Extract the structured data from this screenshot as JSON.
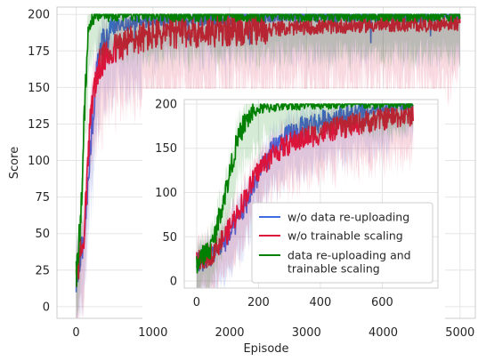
{
  "colors": {
    "background": "#ffffff",
    "grid": "#e5e5e5",
    "frame": "#cccccc",
    "series_blue": "#4169e1",
    "series_red": "#dc143c",
    "series_green": "#008000"
  },
  "chart_data": [
    {
      "id": "main",
      "type": "line",
      "xlabel": "Episode",
      "ylabel": "Score",
      "xlim": [
        -250,
        5200
      ],
      "ylim": [
        -8,
        205
      ],
      "xticks": [
        0,
        1000,
        2000,
        3000,
        4000,
        5000
      ],
      "yticks": [
        0,
        25,
        50,
        75,
        100,
        125,
        150,
        175,
        200
      ],
      "xtick_labels": [
        "0",
        "1000",
        "2000",
        "3000",
        "4000",
        "5000"
      ],
      "ytick_labels": [
        "0",
        "25",
        "50",
        "75",
        "100",
        "125",
        "150",
        "175",
        "200"
      ],
      "grid": true,
      "shaded_bands": true,
      "series": [
        {
          "name": "w/o data re-uploading",
          "color": "#4169e1",
          "x": [
            0,
            100,
            200,
            300,
            400,
            500,
            700,
            1000,
            1500,
            2000,
            2500,
            3000,
            3500,
            4000,
            4500,
            5000
          ],
          "y": [
            20,
            45,
            120,
            175,
            185,
            192,
            194,
            196,
            197,
            198,
            199,
            199,
            199,
            199,
            199,
            199
          ]
        },
        {
          "name": "w/o trainable scaling",
          "color": "#dc143c",
          "x": [
            0,
            100,
            200,
            300,
            400,
            500,
            700,
            1000,
            1500,
            2000,
            2500,
            3000,
            3500,
            4000,
            4500,
            5000
          ],
          "y": [
            20,
            50,
            140,
            165,
            172,
            176,
            182,
            186,
            188,
            189,
            190,
            191,
            192,
            193,
            193,
            194
          ]
        },
        {
          "name": "data re-uploading and trainable scaling",
          "color": "#008000",
          "x": [
            0,
            60,
            100,
            150,
            200,
            300,
            500,
            1000,
            2000,
            3000,
            4000,
            5000
          ],
          "y": [
            20,
            60,
            120,
            185,
            197,
            200,
            200,
            200,
            200,
            200,
            200,
            200
          ]
        }
      ]
    },
    {
      "id": "inset",
      "type": "line",
      "xlim": [
        -40,
        780
      ],
      "ylim": [
        -8,
        205
      ],
      "xticks": [
        0,
        200,
        400,
        600
      ],
      "yticks": [
        0,
        50,
        100,
        150,
        200
      ],
      "xtick_labels": [
        "0",
        "200",
        "400",
        "600"
      ],
      "ytick_labels": [
        "0",
        "50",
        "100",
        "150",
        "200"
      ],
      "grid": true,
      "shaded_bands": true,
      "legend": {
        "location": "lower-right",
        "entries": [
          {
            "label": "w/o data re-uploading",
            "color": "#4169e1"
          },
          {
            "label": "w/o trainable scaling",
            "color": "#dc143c"
          },
          {
            "label_lines": [
              "data re-uploading and",
              "trainable scaling"
            ],
            "color": "#008000"
          }
        ]
      },
      "series": [
        {
          "name": "w/o data re-uploading",
          "color": "#4169e1",
          "x": [
            0,
            50,
            100,
            150,
            200,
            250,
            300,
            350,
            400,
            450,
            500,
            550,
            600,
            650,
            700
          ],
          "y": [
            20,
            30,
            48,
            80,
            120,
            150,
            165,
            175,
            180,
            185,
            188,
            190,
            193,
            197,
            200
          ]
        },
        {
          "name": "w/o trainable scaling",
          "color": "#dc143c",
          "x": [
            0,
            50,
            100,
            150,
            200,
            250,
            300,
            350,
            400,
            450,
            500,
            550,
            600,
            650,
            700
          ],
          "y": [
            20,
            32,
            55,
            90,
            125,
            145,
            155,
            162,
            167,
            172,
            176,
            180,
            183,
            186,
            188
          ]
        },
        {
          "name": "data re-uploading and trainable scaling",
          "color": "#008000",
          "x": [
            0,
            50,
            100,
            125,
            150,
            175,
            200,
            250,
            300,
            400,
            500,
            600,
            700
          ],
          "y": [
            20,
            40,
            110,
            150,
            175,
            188,
            194,
            197,
            199,
            200,
            200,
            200,
            200
          ]
        }
      ]
    }
  ]
}
